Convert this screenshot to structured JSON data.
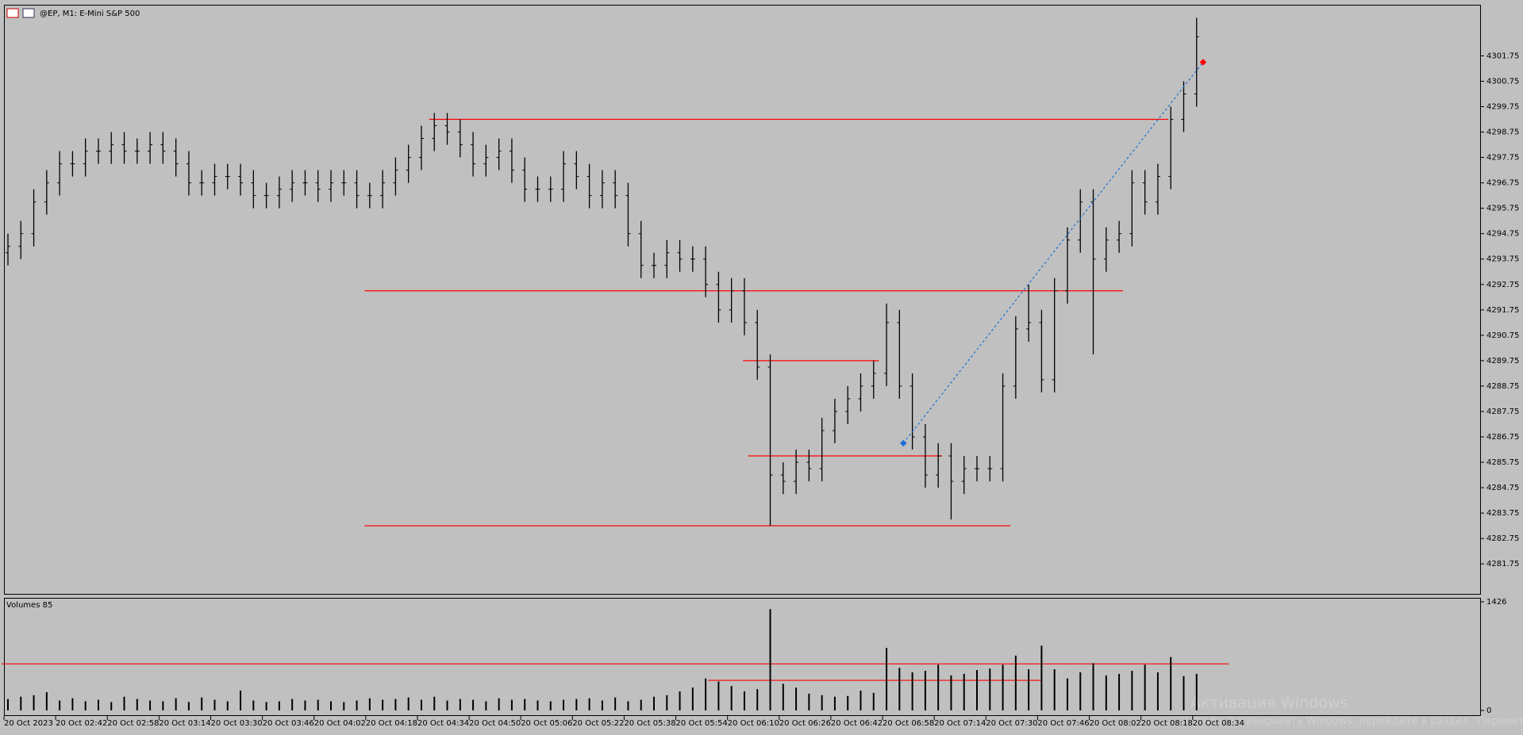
{
  "chart_data": {
    "type": "ohlc",
    "title": "@EP, M1:  E-Mini S&P 500",
    "open": [
      4294.0,
      4294.25,
      4294.75,
      4296.0,
      4296.75,
      4297.5,
      4297.5,
      4298.0,
      4298.0,
      4298.25,
      4298.0,
      4298.0,
      4298.25,
      4298.0,
      4297.5,
      4296.75,
      4296.75,
      4297.0,
      4297.0,
      4296.75,
      4296.25,
      4296.25,
      4296.5,
      4296.75,
      4296.75,
      4296.5,
      4296.75,
      4296.75,
      4296.25,
      4296.25,
      4296.75,
      4297.25,
      4297.75,
      4298.5,
      4299.0,
      4298.75,
      4298.25,
      4297.5,
      4297.75,
      4298.0,
      4297.25,
      4296.5,
      4296.5,
      4296.5,
      4297.5,
      4297.0,
      4296.25,
      4296.75,
      4296.25,
      4294.75,
      4293.5,
      4293.5,
      4294.0,
      4293.75,
      4293.75,
      4292.75,
      4291.75,
      4292.5,
      4291.25,
      4289.5,
      4285.25,
      4285.0,
      4285.75,
      4285.5,
      4287.0,
      4287.75,
      4288.25,
      4288.75,
      4289.25,
      4291.25,
      4288.75,
      4286.75,
      4285.25,
      4286.0,
      4285.0,
      4285.5,
      4285.5,
      4285.5,
      4288.75,
      4291.0,
      4291.25,
      4289.0,
      4292.5,
      4294.5,
      4296.0,
      4293.75,
      4294.5,
      4294.75,
      4296.75,
      4296.0,
      4297.0,
      4299.25,
      4300.25
    ],
    "high": [
      4294.75,
      4295.25,
      4296.5,
      4297.25,
      4298.0,
      4298.0,
      4298.5,
      4298.5,
      4298.75,
      4298.75,
      4298.5,
      4298.75,
      4298.75,
      4298.5,
      4298.0,
      4297.25,
      4297.5,
      4297.5,
      4297.5,
      4297.25,
      4296.75,
      4297.0,
      4297.25,
      4297.25,
      4297.25,
      4297.25,
      4297.25,
      4297.25,
      4296.75,
      4297.25,
      4297.75,
      4298.25,
      4299.0,
      4299.5,
      4299.5,
      4299.25,
      4298.75,
      4298.25,
      4298.5,
      4298.5,
      4297.75,
      4297.0,
      4297.0,
      4298.0,
      4298.0,
      4297.5,
      4297.25,
      4297.25,
      4296.75,
      4295.25,
      4294.0,
      4294.5,
      4294.5,
      4294.25,
      4294.25,
      4293.25,
      4293.0,
      4293.0,
      4291.75,
      4290.0,
      4285.75,
      4286.25,
      4286.25,
      4287.5,
      4288.25,
      4288.75,
      4289.25,
      4289.75,
      4292.0,
      4291.75,
      4289.25,
      4287.25,
      4286.5,
      4286.5,
      4286.0,
      4286.0,
      4286.0,
      4289.25,
      4291.5,
      4292.75,
      4291.75,
      4293.0,
      4295.0,
      4296.5,
      4296.5,
      4295.0,
      4295.25,
      4297.25,
      4297.25,
      4297.5,
      4299.75,
      4300.75,
      4303.25
    ],
    "low": [
      4293.5,
      4293.75,
      4294.25,
      4295.5,
      4296.25,
      4297.0,
      4297.0,
      4297.5,
      4297.5,
      4297.5,
      4297.5,
      4297.5,
      4297.5,
      4297.0,
      4296.25,
      4296.25,
      4296.25,
      4296.5,
      4296.25,
      4295.75,
      4295.75,
      4295.75,
      4296.0,
      4296.25,
      4296.0,
      4296.0,
      4296.25,
      4295.75,
      4295.75,
      4295.75,
      4296.25,
      4296.75,
      4297.25,
      4298.0,
      4298.25,
      4297.75,
      4297.0,
      4297.0,
      4297.25,
      4296.75,
      4296.0,
      4296.0,
      4296.0,
      4296.0,
      4296.5,
      4295.75,
      4295.75,
      4295.75,
      4294.25,
      4293.0,
      4293.0,
      4293.0,
      4293.25,
      4293.25,
      4292.25,
      4291.25,
      4291.25,
      4290.75,
      4289.0,
      4283.25,
      4284.5,
      4284.5,
      4285.0,
      4285.0,
      4286.5,
      4287.25,
      4287.75,
      4288.25,
      4288.75,
      4288.25,
      4286.25,
      4284.75,
      4284.75,
      4283.5,
      4284.5,
      4285.0,
      4285.0,
      4285.0,
      4288.25,
      4290.5,
      4288.5,
      4288.5,
      4292.0,
      4294.0,
      4290.0,
      4293.25,
      4294.0,
      4294.25,
      4295.5,
      4295.5,
      4296.5,
      4298.75,
      4299.75
    ],
    "close": [
      4294.25,
      4294.75,
      4296.0,
      4296.75,
      4297.5,
      4297.5,
      4298.0,
      4298.0,
      4298.25,
      4298.0,
      4298.0,
      4298.25,
      4298.0,
      4297.5,
      4296.75,
      4296.75,
      4297.0,
      4297.0,
      4296.75,
      4296.25,
      4296.25,
      4296.5,
      4296.75,
      4296.75,
      4296.5,
      4296.75,
      4296.75,
      4296.25,
      4296.25,
      4296.75,
      4297.25,
      4297.75,
      4298.5,
      4299.0,
      4298.75,
      4298.25,
      4297.5,
      4297.75,
      4298.0,
      4297.25,
      4296.5,
      4296.5,
      4296.5,
      4297.5,
      4297.0,
      4296.25,
      4296.75,
      4296.25,
      4294.75,
      4293.5,
      4293.5,
      4294.0,
      4293.75,
      4293.75,
      4292.75,
      4291.75,
      4292.5,
      4291.25,
      4289.5,
      4285.25,
      4285.0,
      4285.75,
      4285.5,
      4287.0,
      4287.75,
      4288.25,
      4288.75,
      4289.25,
      4291.25,
      4288.75,
      4286.75,
      4285.25,
      4286.0,
      4285.0,
      4285.5,
      4285.5,
      4285.5,
      4288.75,
      4291.0,
      4291.25,
      4289.0,
      4292.5,
      4294.5,
      4296.0,
      4293.75,
      4294.5,
      4294.75,
      4296.75,
      4296.0,
      4297.0,
      4299.25,
      4300.25,
      4302.5
    ],
    "bar_color": "#000000",
    "ylim": [
      4280.57,
      4303.73
    ],
    "yticks": [
      4281.75,
      4282.75,
      4283.75,
      4284.75,
      4285.75,
      4286.75,
      4287.75,
      4288.75,
      4289.75,
      4290.75,
      4291.75,
      4292.75,
      4293.75,
      4294.75,
      4295.75,
      4296.75,
      4297.75,
      4298.75,
      4299.75,
      4300.75,
      4301.75
    ],
    "levels": [
      4299.25,
      4292.5,
      4289.75,
      4286.0,
      4283.25
    ],
    "level_color": "#ff0000",
    "trendline": [
      4286.5,
      4301.5
    ],
    "trend_color": "#1e6fd9",
    "volume_title": "Volumes 85",
    "volume": [
      150,
      180,
      200,
      240,
      130,
      160,
      120,
      140,
      110,
      180,
      150,
      130,
      120,
      160,
      110,
      170,
      140,
      120,
      260,
      130,
      110,
      120,
      150,
      130,
      140,
      120,
      110,
      130,
      160,
      140,
      150,
      170,
      140,
      180,
      130,
      150,
      140,
      120,
      160,
      140,
      150,
      130,
      120,
      140,
      150,
      160,
      130,
      170,
      120,
      140,
      180,
      200,
      250,
      300,
      420,
      380,
      320,
      250,
      280,
      1330,
      350,
      300,
      220,
      200,
      180,
      190,
      260,
      230,
      820,
      560,
      500,
      520,
      600,
      460,
      480,
      530,
      550,
      600,
      720,
      540,
      850,
      540,
      420,
      500,
      620,
      460,
      480,
      520,
      600,
      500,
      700,
      450,
      480
    ],
    "volume_levels": [
      611,
      395
    ],
    "vlim": [
      0,
      1426
    ],
    "vticks": [
      0,
      1426
    ],
    "x_labels": [
      {
        "value": 0,
        "label": "20 Oct 2023"
      },
      {
        "value": 4,
        "label": "20 Oct 02:42"
      },
      {
        "value": 8,
        "label": "20 Oct 02:58"
      },
      {
        "value": 12,
        "label": "20 Oct 03:14"
      },
      {
        "value": 16,
        "label": "20 Oct 03:30"
      },
      {
        "value": 20,
        "label": "20 Oct 03:46"
      },
      {
        "value": 24,
        "label": "20 Oct 04:02"
      },
      {
        "value": 28,
        "label": "20 Oct 04:18"
      },
      {
        "value": 32,
        "label": "20 Oct 04:34"
      },
      {
        "value": 36,
        "label": "20 Oct 04:50"
      },
      {
        "value": 40,
        "label": "20 Oct 05:06"
      },
      {
        "value": 44,
        "label": "20 Oct 05:22"
      },
      {
        "value": 48,
        "label": "20 Oct 05:38"
      },
      {
        "value": 52,
        "label": "20 Oct 05:54"
      },
      {
        "value": 56,
        "label": "20 Oct 06:10"
      },
      {
        "value": 60,
        "label": "20 Oct 06:26"
      },
      {
        "value": 64,
        "label": "20 Oct 06:42"
      },
      {
        "value": 68,
        "label": "20 Oct 06:58"
      },
      {
        "value": 72,
        "label": "20 Oct 07:14"
      },
      {
        "value": 76,
        "label": "20 Oct 07:30"
      },
      {
        "value": 80,
        "label": "20 Oct 07:46"
      },
      {
        "value": 84,
        "label": "20 Oct 08:02"
      },
      {
        "value": 88,
        "label": "20 Oct 08:18"
      },
      {
        "value": 92,
        "label": "20 Oct 08:34"
      }
    ],
    "watermark": [
      "Активация Windows",
      "Чтобы активировать Windows, перейдите в раздел \"Параметры\"."
    ]
  }
}
